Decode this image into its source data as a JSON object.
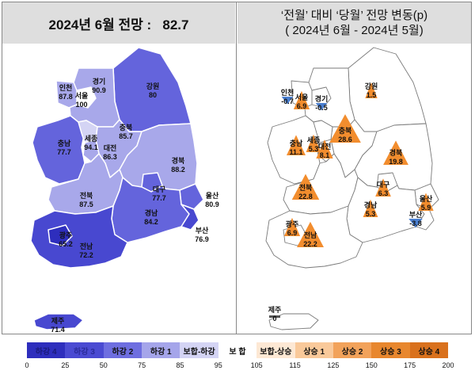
{
  "left_panel": {
    "title_prefix": "2024년 6월 전망 :",
    "title_value": "82.7",
    "regions": [
      {
        "name": "인천",
        "value": "87.8"
      },
      {
        "name": "경기",
        "value": "90.9"
      },
      {
        "name": "서울",
        "value": "100"
      },
      {
        "name": "강원",
        "value": "80"
      },
      {
        "name": "충북",
        "value": "85.7"
      },
      {
        "name": "세종",
        "value": "94.1"
      },
      {
        "name": "충남",
        "value": "77.7"
      },
      {
        "name": "대전",
        "value": "86.3"
      },
      {
        "name": "경북",
        "value": "88.2"
      },
      {
        "name": "대구",
        "value": "77.7"
      },
      {
        "name": "전북",
        "value": "87.5"
      },
      {
        "name": "울산",
        "value": "80.9"
      },
      {
        "name": "경남",
        "value": "84.2"
      },
      {
        "name": "부산",
        "value": "76.9"
      },
      {
        "name": "광주",
        "value": "65.2"
      },
      {
        "name": "전남",
        "value": "72.2"
      },
      {
        "name": "제주",
        "value": "71.4"
      }
    ]
  },
  "right_panel": {
    "title_line1": "‘전월’ 대비 ‘당월’ 전망 변동(p)",
    "title_line2": "( 2024년 6월 -  2024년 5월)",
    "regions": [
      {
        "name": "인천",
        "value": "-0.7",
        "direction": "down"
      },
      {
        "name": "서울",
        "value": "6.9",
        "direction": "up"
      },
      {
        "name": "경기",
        "value": "-0.5",
        "direction": "down"
      },
      {
        "name": "강원",
        "value": "1.5",
        "direction": "up"
      },
      {
        "name": "충남",
        "value": "11.1",
        "direction": "up"
      },
      {
        "name": "세종",
        "value": "5.3",
        "direction": "up"
      },
      {
        "name": "대전",
        "value": "8.1",
        "direction": "up"
      },
      {
        "name": "충북",
        "value": "28.6",
        "direction": "up"
      },
      {
        "name": "경북",
        "value": "19.8",
        "direction": "up"
      },
      {
        "name": "전북",
        "value": "22.8",
        "direction": "up"
      },
      {
        "name": "대구",
        "value": "6.3",
        "direction": "up"
      },
      {
        "name": "울산",
        "value": "5.9",
        "direction": "up"
      },
      {
        "name": "경남",
        "value": "5.3",
        "direction": "up"
      },
      {
        "name": "부산",
        "value": "-3.8",
        "direction": "down"
      },
      {
        "name": "광주",
        "value": "6.9",
        "direction": "up"
      },
      {
        "name": "전남",
        "value": "22.2",
        "direction": "up"
      },
      {
        "name": "제주",
        "value": "0",
        "direction": "flat"
      }
    ]
  },
  "legend": {
    "items": [
      {
        "label": "하강 4",
        "color": "#2e2ebd",
        "text_color": "#1a1a7a"
      },
      {
        "label": "하강 3",
        "color": "#4a4ad2",
        "text_color": "#2a2a9a"
      },
      {
        "label": "하강 2",
        "color": "#6e6ee0",
        "text_color": "#111111"
      },
      {
        "label": "하강 1",
        "color": "#a5a5ea",
        "text_color": "#111111"
      },
      {
        "label": "보합-하강",
        "color": "#d4d4f4",
        "text_color": "#111111"
      },
      {
        "label": "보 합",
        "color": "#ffffff",
        "text_color": "#111111"
      },
      {
        "label": "보합-상승",
        "color": "#fde8d4",
        "text_color": "#111111"
      },
      {
        "label": "상승 1",
        "color": "#f9c99a",
        "text_color": "#111111"
      },
      {
        "label": "상승 2",
        "color": "#f2a25a",
        "text_color": "#111111"
      },
      {
        "label": "상승 3",
        "color": "#e8872e",
        "text_color": "#111111"
      },
      {
        "label": "상승 4",
        "color": "#d9711d",
        "text_color": "#111111"
      }
    ],
    "ticks": [
      "0",
      "25",
      "50",
      "75",
      "85",
      "95",
      "105",
      "115",
      "125",
      "150",
      "175",
      "200"
    ]
  },
  "colors": {
    "up_triangle": "#f28d2e",
    "down_triangle": "#4a7fd0",
    "flat_bar": "#555555",
    "header_bg": "#dedede"
  }
}
